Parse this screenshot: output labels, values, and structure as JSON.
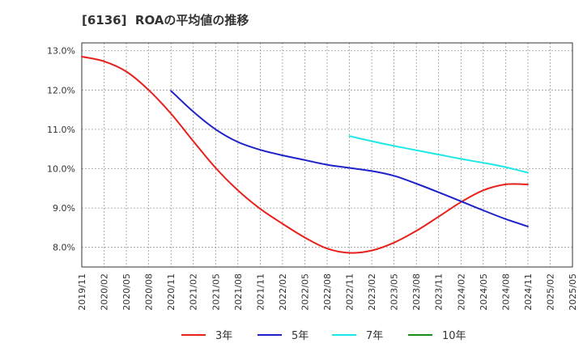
{
  "chart_data": {
    "type": "line",
    "title": "[6136]  ROAの平均値の推移",
    "xlabel": "",
    "ylabel": "",
    "x_ticks": [
      "2019/11",
      "2020/02",
      "2020/05",
      "2020/08",
      "2020/11",
      "2021/02",
      "2021/05",
      "2021/08",
      "2021/11",
      "2022/02",
      "2022/05",
      "2022/08",
      "2022/11",
      "2023/02",
      "2023/05",
      "2023/08",
      "2023/11",
      "2024/02",
      "2024/05",
      "2024/08",
      "2024/11",
      "2025/02",
      "2025/05"
    ],
    "y_ticks": [
      {
        "value": 8.0,
        "label": "8.0%"
      },
      {
        "value": 9.0,
        "label": "9.0%"
      },
      {
        "value": 10.0,
        "label": "10.0%"
      },
      {
        "value": 11.0,
        "label": "11.0%"
      },
      {
        "value": 12.0,
        "label": "12.0%"
      },
      {
        "value": 13.0,
        "label": "13.0%"
      }
    ],
    "ylim": [
      7.5,
      13.2
    ],
    "grid": true,
    "legend_position": "bottom",
    "series": [
      {
        "name": "3年",
        "color": "#e8201c",
        "points": [
          {
            "x": "2019/11",
            "y": 12.85
          },
          {
            "x": "2020/02",
            "y": 12.73
          },
          {
            "x": "2020/05",
            "y": 12.47
          },
          {
            "x": "2020/08",
            "y": 12.0
          },
          {
            "x": "2020/11",
            "y": 11.4
          },
          {
            "x": "2021/02",
            "y": 10.7
          },
          {
            "x": "2021/05",
            "y": 10.02
          },
          {
            "x": "2021/08",
            "y": 9.45
          },
          {
            "x": "2021/11",
            "y": 8.98
          },
          {
            "x": "2022/02",
            "y": 8.6
          },
          {
            "x": "2022/05",
            "y": 8.25
          },
          {
            "x": "2022/08",
            "y": 7.97
          },
          {
            "x": "2022/11",
            "y": 7.86
          },
          {
            "x": "2023/02",
            "y": 7.92
          },
          {
            "x": "2023/05",
            "y": 8.12
          },
          {
            "x": "2023/08",
            "y": 8.42
          },
          {
            "x": "2023/11",
            "y": 8.78
          },
          {
            "x": "2024/02",
            "y": 9.15
          },
          {
            "x": "2024/05",
            "y": 9.45
          },
          {
            "x": "2024/08",
            "y": 9.6
          },
          {
            "x": "2024/11",
            "y": 9.6
          }
        ]
      },
      {
        "name": "5年",
        "color": "#1c22c8",
        "points": [
          {
            "x": "2020/11",
            "y": 11.98
          },
          {
            "x": "2021/02",
            "y": 11.45
          },
          {
            "x": "2021/05",
            "y": 11.0
          },
          {
            "x": "2021/08",
            "y": 10.68
          },
          {
            "x": "2021/11",
            "y": 10.48
          },
          {
            "x": "2022/02",
            "y": 10.34
          },
          {
            "x": "2022/05",
            "y": 10.22
          },
          {
            "x": "2022/08",
            "y": 10.1
          },
          {
            "x": "2022/11",
            "y": 10.02
          },
          {
            "x": "2023/02",
            "y": 9.94
          },
          {
            "x": "2023/05",
            "y": 9.82
          },
          {
            "x": "2023/08",
            "y": 9.62
          },
          {
            "x": "2023/11",
            "y": 9.4
          },
          {
            "x": "2024/02",
            "y": 9.17
          },
          {
            "x": "2024/05",
            "y": 8.94
          },
          {
            "x": "2024/08",
            "y": 8.72
          },
          {
            "x": "2024/11",
            "y": 8.53
          }
        ]
      },
      {
        "name": "7年",
        "color": "#1ce8e8",
        "points": [
          {
            "x": "2022/11",
            "y": 10.83
          },
          {
            "x": "2023/02",
            "y": 10.7
          },
          {
            "x": "2023/05",
            "y": 10.58
          },
          {
            "x": "2023/08",
            "y": 10.47
          },
          {
            "x": "2023/11",
            "y": 10.36
          },
          {
            "x": "2024/02",
            "y": 10.25
          },
          {
            "x": "2024/05",
            "y": 10.15
          },
          {
            "x": "2024/08",
            "y": 10.04
          },
          {
            "x": "2024/11",
            "y": 9.9
          }
        ]
      },
      {
        "name": "10年",
        "color": "#1a8a1a",
        "points": []
      }
    ]
  }
}
